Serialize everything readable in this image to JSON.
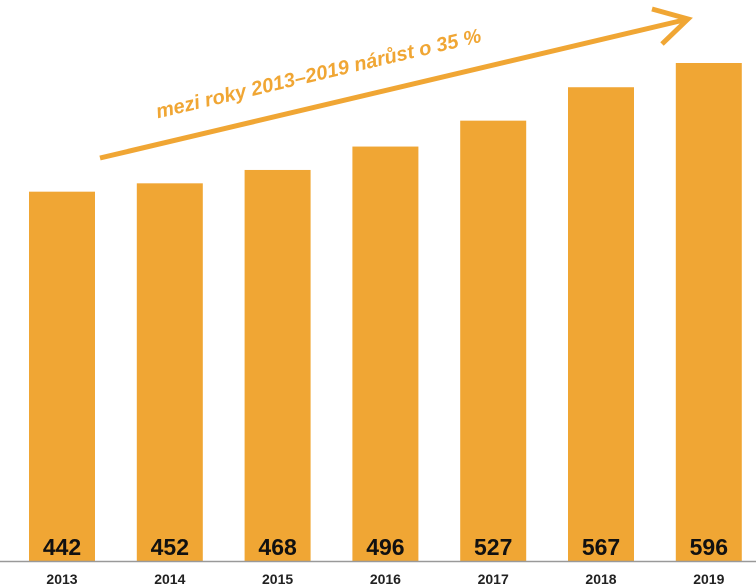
{
  "chart_data": {
    "type": "bar",
    "annotation": "mezi roky 2013–2019 nárůst o 35 %",
    "categories": [
      "2013",
      "2014",
      "2015",
      "2016",
      "2017",
      "2018",
      "2019"
    ],
    "values": [
      442,
      452,
      468,
      496,
      527,
      567,
      596
    ],
    "color": "#f0a634"
  }
}
